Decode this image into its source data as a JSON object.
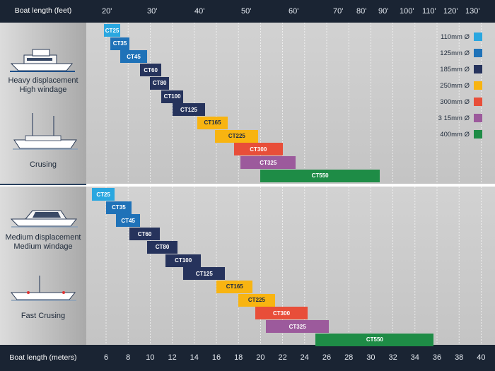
{
  "chart_data": {
    "type": "bar",
    "subtype": "range-gantt",
    "x_axis_top": {
      "label": "Boat length (feet)",
      "ticks": [
        "20'",
        "30'",
        "40'",
        "50'",
        "60'",
        "70'",
        "80'",
        "90'",
        "100'",
        "110'",
        "120'",
        "130'"
      ]
    },
    "x_axis_bottom": {
      "label": "Boat length (meters)",
      "ticks": [
        "6",
        "8",
        "10",
        "12",
        "14",
        "16",
        "18",
        "20",
        "22",
        "24",
        "26",
        "28",
        "30",
        "32",
        "34",
        "36",
        "38",
        "40"
      ],
      "tick_values": [
        6,
        8,
        10,
        12,
        14,
        16,
        18,
        20,
        22,
        24,
        26,
        28,
        30,
        32,
        34,
        36,
        38,
        40
      ]
    },
    "legend": {
      "position": "top-right",
      "items": [
        {
          "label": "110mm Ø",
          "color": "#2aa7e0"
        },
        {
          "label": "125mm Ø",
          "color": "#1f72b8"
        },
        {
          "label": "185mm Ø",
          "color": "#26335c"
        },
        {
          "label": "250mm Ø",
          "color": "#f8b411"
        },
        {
          "label": "300mm Ø",
          "color": "#e84e39"
        },
        {
          "label": "3 15mm Ø",
          "color": "#9c5a9c"
        },
        {
          "label": "400mm Ø",
          "color": "#1e8c46"
        }
      ]
    },
    "panels": [
      {
        "label_lines": [
          "Heavy displacement",
          "High windage"
        ],
        "sublabel": "Crusing",
        "bars": [
          {
            "name": "CT25",
            "start_m": 5.8,
            "end_m": 7.3,
            "color": "#2aa7e0"
          },
          {
            "name": "CT35",
            "start_m": 6.4,
            "end_m": 8.1,
            "color": "#1f72b8"
          },
          {
            "name": "CT45",
            "start_m": 7.3,
            "end_m": 9.7,
            "color": "#1f72b8"
          },
          {
            "name": "CT60",
            "start_m": 9.1,
            "end_m": 11.0,
            "color": "#26335c"
          },
          {
            "name": "CT80",
            "start_m": 10.0,
            "end_m": 11.7,
            "color": "#26335c"
          },
          {
            "name": "CT100",
            "start_m": 11.0,
            "end_m": 13.0,
            "color": "#26335c"
          },
          {
            "name": "CT125",
            "start_m": 12.0,
            "end_m": 15.0,
            "color": "#26335c"
          },
          {
            "name": "CT165",
            "start_m": 14.3,
            "end_m": 17.0,
            "color": "#f8b411"
          },
          {
            "name": "CT225",
            "start_m": 15.9,
            "end_m": 19.8,
            "color": "#f8b411"
          },
          {
            "name": "CT300",
            "start_m": 17.6,
            "end_m": 22.0,
            "color": "#e84e39"
          },
          {
            "name": "CT325",
            "start_m": 18.2,
            "end_m": 23.2,
            "color": "#9c5a9c"
          },
          {
            "name": "CT550",
            "start_m": 20.0,
            "end_m": 30.8,
            "color": "#1e8c46"
          }
        ]
      },
      {
        "label_lines": [
          "Medium displacement",
          "Medium windage"
        ],
        "sublabel": "Fast Crusing",
        "bars": [
          {
            "name": "CT25",
            "start_m": 4.7,
            "end_m": 6.8,
            "color": "#2aa7e0"
          },
          {
            "name": "CT35",
            "start_m": 6.0,
            "end_m": 8.3,
            "color": "#1f72b8"
          },
          {
            "name": "CT45",
            "start_m": 6.9,
            "end_m": 9.1,
            "color": "#1f72b8"
          },
          {
            "name": "CT60",
            "start_m": 8.1,
            "end_m": 10.9,
            "color": "#26335c"
          },
          {
            "name": "CT80",
            "start_m": 9.7,
            "end_m": 12.5,
            "color": "#26335c"
          },
          {
            "name": "CT100",
            "start_m": 11.4,
            "end_m": 14.6,
            "color": "#26335c"
          },
          {
            "name": "CT125",
            "start_m": 13.0,
            "end_m": 16.8,
            "color": "#26335c"
          },
          {
            "name": "CT165",
            "start_m": 16.0,
            "end_m": 19.3,
            "color": "#f8b411"
          },
          {
            "name": "CT225",
            "start_m": 18.0,
            "end_m": 21.3,
            "color": "#f8b411"
          },
          {
            "name": "CT300",
            "start_m": 19.5,
            "end_m": 24.3,
            "color": "#e84e39"
          },
          {
            "name": "CT325",
            "start_m": 20.5,
            "end_m": 26.2,
            "color": "#9c5a9c"
          },
          {
            "name": "CT550",
            "start_m": 25.0,
            "end_m": 35.7,
            "color": "#1e8c46"
          }
        ]
      }
    ]
  }
}
